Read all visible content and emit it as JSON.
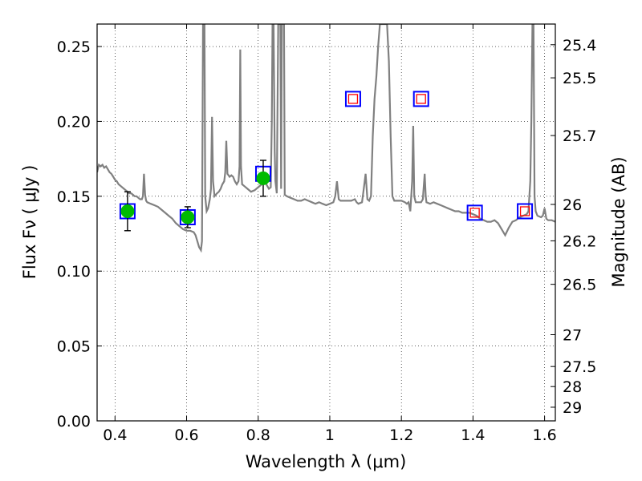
{
  "chart_data": {
    "type": "scatter",
    "xlabel": "Wavelength  λ (μm)",
    "ylabel": "Flux  Fν  ( μJy )",
    "y2label": "Magnitude (AB)",
    "xlim": [
      0.35,
      1.63
    ],
    "ylim": [
      0.0,
      0.265
    ],
    "grid": true,
    "x_ticks": [
      {
        "value": 0.4,
        "label": "0.4"
      },
      {
        "value": 0.6,
        "label": "0.6"
      },
      {
        "value": 0.8,
        "label": "0.8"
      },
      {
        "value": 1.0,
        "label": "1"
      },
      {
        "value": 1.2,
        "label": "1.2"
      },
      {
        "value": 1.4,
        "label": "1.4"
      },
      {
        "value": 1.6,
        "label": "1.6"
      }
    ],
    "y_ticks": [
      {
        "value": 0.0,
        "label": "0.00"
      },
      {
        "value": 0.05,
        "label": "0.05"
      },
      {
        "value": 0.1,
        "label": "0.10"
      },
      {
        "value": 0.15,
        "label": "0.15"
      },
      {
        "value": 0.2,
        "label": "0.20"
      },
      {
        "value": 0.25,
        "label": "0.25"
      }
    ],
    "y2_ticks": [
      {
        "value": 25.4,
        "label": "25.4"
      },
      {
        "value": 25.5,
        "label": "25.5"
      },
      {
        "value": 25.7,
        "label": "25.7"
      },
      {
        "value": 26,
        "label": "26"
      },
      {
        "value": 26.2,
        "label": "26.2"
      },
      {
        "value": 26.5,
        "label": "26.5"
      },
      {
        "value": 27,
        "label": "27"
      },
      {
        "value": 27.5,
        "label": "27.5"
      },
      {
        "value": 28,
        "label": "28"
      },
      {
        "value": 29,
        "label": "29"
      }
    ],
    "series": [
      {
        "kind": "line",
        "color": "#808080",
        "points": [
          [
            0.35,
            0.166
          ],
          [
            0.355,
            0.171
          ],
          [
            0.36,
            0.17
          ],
          [
            0.365,
            0.171
          ],
          [
            0.37,
            0.169
          ],
          [
            0.375,
            0.17
          ],
          [
            0.38,
            0.168
          ],
          [
            0.385,
            0.166
          ],
          [
            0.39,
            0.165
          ],
          [
            0.395,
            0.163
          ],
          [
            0.4,
            0.161
          ],
          [
            0.405,
            0.16
          ],
          [
            0.41,
            0.158
          ],
          [
            0.415,
            0.157
          ],
          [
            0.42,
            0.156
          ],
          [
            0.425,
            0.155
          ],
          [
            0.43,
            0.154
          ],
          [
            0.435,
            0.153
          ],
          [
            0.44,
            0.152
          ],
          [
            0.445,
            0.152
          ],
          [
            0.45,
            0.151
          ],
          [
            0.455,
            0.15
          ],
          [
            0.46,
            0.15
          ],
          [
            0.465,
            0.149
          ],
          [
            0.47,
            0.148
          ],
          [
            0.475,
            0.148
          ],
          [
            0.478,
            0.15
          ],
          [
            0.481,
            0.165
          ],
          [
            0.484,
            0.151
          ],
          [
            0.487,
            0.147
          ],
          [
            0.49,
            0.146
          ],
          [
            0.5,
            0.145
          ],
          [
            0.51,
            0.144
          ],
          [
            0.52,
            0.143
          ],
          [
            0.53,
            0.141
          ],
          [
            0.54,
            0.139
          ],
          [
            0.55,
            0.137
          ],
          [
            0.56,
            0.135
          ],
          [
            0.57,
            0.132
          ],
          [
            0.58,
            0.13
          ],
          [
            0.59,
            0.128
          ],
          [
            0.6,
            0.127
          ],
          [
            0.61,
            0.127
          ],
          [
            0.62,
            0.126
          ],
          [
            0.625,
            0.124
          ],
          [
            0.63,
            0.12
          ],
          [
            0.635,
            0.116
          ],
          [
            0.64,
            0.114
          ],
          [
            0.643,
            0.12
          ],
          [
            0.646,
            0.265
          ],
          [
            0.65,
            0.265
          ],
          [
            0.652,
            0.15
          ],
          [
            0.656,
            0.14
          ],
          [
            0.66,
            0.142
          ],
          [
            0.665,
            0.148
          ],
          [
            0.668,
            0.155
          ],
          [
            0.671,
            0.203
          ],
          [
            0.674,
            0.16
          ],
          [
            0.678,
            0.15
          ],
          [
            0.685,
            0.152
          ],
          [
            0.69,
            0.153
          ],
          [
            0.695,
            0.155
          ],
          [
            0.7,
            0.158
          ],
          [
            0.705,
            0.16
          ],
          [
            0.708,
            0.166
          ],
          [
            0.711,
            0.187
          ],
          [
            0.714,
            0.165
          ],
          [
            0.72,
            0.163
          ],
          [
            0.725,
            0.164
          ],
          [
            0.73,
            0.163
          ],
          [
            0.735,
            0.16
          ],
          [
            0.74,
            0.158
          ],
          [
            0.745,
            0.16
          ],
          [
            0.748,
            0.17
          ],
          [
            0.75,
            0.248
          ],
          [
            0.752,
            0.17
          ],
          [
            0.755,
            0.158
          ],
          [
            0.76,
            0.157
          ],
          [
            0.77,
            0.155
          ],
          [
            0.78,
            0.153
          ],
          [
            0.79,
            0.154
          ],
          [
            0.8,
            0.156
          ],
          [
            0.81,
            0.158
          ],
          [
            0.818,
            0.16
          ],
          [
            0.825,
            0.157
          ],
          [
            0.83,
            0.155
          ],
          [
            0.835,
            0.156
          ],
          [
            0.838,
            0.2
          ],
          [
            0.84,
            0.265
          ],
          [
            0.843,
            0.265
          ],
          [
            0.846,
            0.18
          ],
          [
            0.848,
            0.16
          ],
          [
            0.852,
            0.152
          ],
          [
            0.856,
            0.265
          ],
          [
            0.862,
            0.265
          ],
          [
            0.864,
            0.155
          ],
          [
            0.866,
            0.265
          ],
          [
            0.872,
            0.265
          ],
          [
            0.874,
            0.151
          ],
          [
            0.88,
            0.15
          ],
          [
            0.89,
            0.149
          ],
          [
            0.9,
            0.148
          ],
          [
            0.91,
            0.147
          ],
          [
            0.92,
            0.147
          ],
          [
            0.93,
            0.148
          ],
          [
            0.94,
            0.147
          ],
          [
            0.95,
            0.146
          ],
          [
            0.96,
            0.145
          ],
          [
            0.97,
            0.146
          ],
          [
            0.98,
            0.145
          ],
          [
            0.99,
            0.144
          ],
          [
            1.0,
            0.145
          ],
          [
            1.01,
            0.146
          ],
          [
            1.015,
            0.15
          ],
          [
            1.02,
            0.16
          ],
          [
            1.025,
            0.148
          ],
          [
            1.03,
            0.147
          ],
          [
            1.04,
            0.147
          ],
          [
            1.05,
            0.147
          ],
          [
            1.06,
            0.147
          ],
          [
            1.07,
            0.148
          ],
          [
            1.075,
            0.146
          ],
          [
            1.08,
            0.145
          ],
          [
            1.09,
            0.146
          ],
          [
            1.095,
            0.155
          ],
          [
            1.1,
            0.165
          ],
          [
            1.105,
            0.148
          ],
          [
            1.11,
            0.147
          ],
          [
            1.115,
            0.15
          ],
          [
            1.12,
            0.19
          ],
          [
            1.125,
            0.215
          ],
          [
            1.13,
            0.23
          ],
          [
            1.135,
            0.25
          ],
          [
            1.14,
            0.265
          ],
          [
            1.16,
            0.265
          ],
          [
            1.165,
            0.24
          ],
          [
            1.17,
            0.19
          ],
          [
            1.175,
            0.15
          ],
          [
            1.18,
            0.147
          ],
          [
            1.19,
            0.147
          ],
          [
            1.2,
            0.147
          ],
          [
            1.21,
            0.146
          ],
          [
            1.215,
            0.145
          ],
          [
            1.22,
            0.146
          ],
          [
            1.225,
            0.14
          ],
          [
            1.23,
            0.16
          ],
          [
            1.233,
            0.197
          ],
          [
            1.236,
            0.15
          ],
          [
            1.24,
            0.146
          ],
          [
            1.25,
            0.146
          ],
          [
            1.255,
            0.146
          ],
          [
            1.26,
            0.148
          ],
          [
            1.265,
            0.165
          ],
          [
            1.268,
            0.15
          ],
          [
            1.27,
            0.146
          ],
          [
            1.28,
            0.145
          ],
          [
            1.29,
            0.146
          ],
          [
            1.3,
            0.145
          ],
          [
            1.31,
            0.144
          ],
          [
            1.32,
            0.143
          ],
          [
            1.33,
            0.142
          ],
          [
            1.34,
            0.141
          ],
          [
            1.35,
            0.14
          ],
          [
            1.36,
            0.14
          ],
          [
            1.37,
            0.139
          ],
          [
            1.38,
            0.139
          ],
          [
            1.39,
            0.139
          ],
          [
            1.4,
            0.138
          ],
          [
            1.41,
            0.137
          ],
          [
            1.42,
            0.135
          ],
          [
            1.43,
            0.134
          ],
          [
            1.44,
            0.133
          ],
          [
            1.45,
            0.133
          ],
          [
            1.46,
            0.134
          ],
          [
            1.47,
            0.132
          ],
          [
            1.48,
            0.128
          ],
          [
            1.49,
            0.124
          ],
          [
            1.5,
            0.129
          ],
          [
            1.51,
            0.133
          ],
          [
            1.52,
            0.134
          ],
          [
            1.53,
            0.136
          ],
          [
            1.54,
            0.137
          ],
          [
            1.55,
            0.138
          ],
          [
            1.555,
            0.14
          ],
          [
            1.56,
            0.16
          ],
          [
            1.563,
            0.2
          ],
          [
            1.566,
            0.265
          ],
          [
            1.569,
            0.265
          ],
          [
            1.572,
            0.15
          ],
          [
            1.575,
            0.14
          ],
          [
            1.58,
            0.137
          ],
          [
            1.59,
            0.136
          ],
          [
            1.595,
            0.137
          ],
          [
            1.6,
            0.142
          ],
          [
            1.605,
            0.135
          ],
          [
            1.61,
            0.134
          ],
          [
            1.62,
            0.134
          ],
          [
            1.63,
            0.133
          ]
        ]
      },
      {
        "kind": "measured",
        "marker": "circle",
        "color": "#00bb00",
        "x": [
          0.435,
          0.603,
          0.814
        ],
        "y": [
          0.14,
          0.136,
          0.162
        ],
        "yerr": [
          0.013,
          0.007,
          0.012
        ]
      },
      {
        "kind": "model-box",
        "marker": "square",
        "color": "#0000ff",
        "x": [
          0.435,
          0.603,
          0.814,
          1.065,
          1.255,
          1.405,
          1.545
        ],
        "y": [
          0.14,
          0.136,
          0.165,
          0.215,
          0.215,
          0.139,
          0.14
        ]
      },
      {
        "kind": "upper-limit",
        "marker": "open-square",
        "color": "#ff0000",
        "x": [
          1.065,
          1.255,
          1.405,
          1.545
        ],
        "y": [
          0.215,
          0.215,
          0.139,
          0.14
        ]
      }
    ]
  }
}
